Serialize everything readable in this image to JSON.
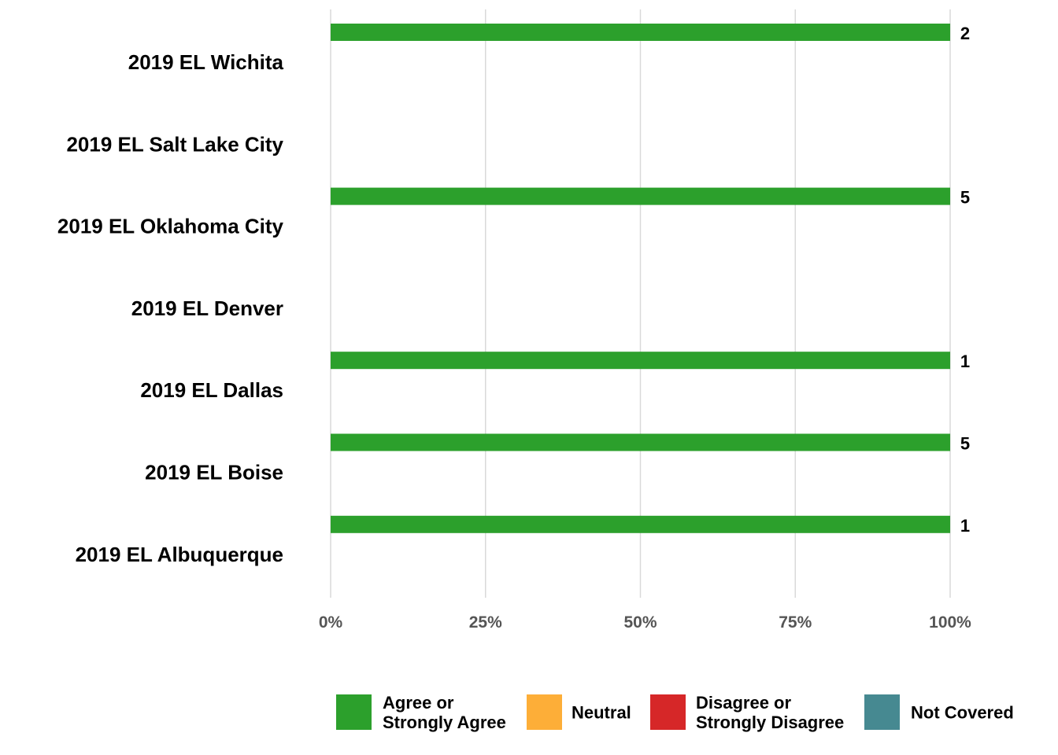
{
  "chart_data": {
    "type": "bar",
    "orientation": "horizontal",
    "stacked": true,
    "categories": [
      "2019 EL Wichita",
      "2019 EL Salt Lake City",
      "2019 EL Oklahoma City",
      "2019 EL Denver",
      "2019 EL Dallas",
      "2019 EL Boise",
      "2019 EL Albuquerque"
    ],
    "series": [
      {
        "name": "Agree or Strongly Agree",
        "color": "#2ca02c",
        "values": [
          1.0,
          null,
          1.0,
          null,
          1.0,
          1.0,
          1.0
        ]
      },
      {
        "name": "Neutral",
        "color": "#fdae38",
        "values": [
          0,
          null,
          0,
          null,
          0,
          0,
          0
        ]
      },
      {
        "name": "Disagree or Strongly Disagree",
        "color": "#d62728",
        "values": [
          0,
          null,
          0,
          null,
          0,
          0,
          0
        ]
      },
      {
        "name": "Not Covered",
        "color": "#468991",
        "values": [
          0,
          null,
          0,
          null,
          0,
          0,
          0
        ]
      }
    ],
    "counts": [
      "2",
      "",
      "5",
      "",
      "1",
      "5",
      "1"
    ],
    "xlim": [
      0,
      1
    ],
    "xticks": [
      0,
      0.25,
      0.5,
      0.75,
      1.0
    ],
    "xtick_labels": [
      "0%",
      "25%",
      "50%",
      "75%",
      "100%"
    ],
    "title": "",
    "xlabel": "",
    "ylabel": "",
    "grid": "vertical",
    "legend": {
      "position": "bottom",
      "entries": [
        {
          "lines": [
            "Agree or",
            "Strongly Agree"
          ],
          "color": "#2ca02c"
        },
        {
          "lines": [
            "Neutral"
          ],
          "color": "#fdae38"
        },
        {
          "lines": [
            "Disagree or",
            "Strongly Disagree"
          ],
          "color": "#d62728"
        },
        {
          "lines": [
            "Not Covered"
          ],
          "color": "#468991"
        }
      ]
    }
  }
}
